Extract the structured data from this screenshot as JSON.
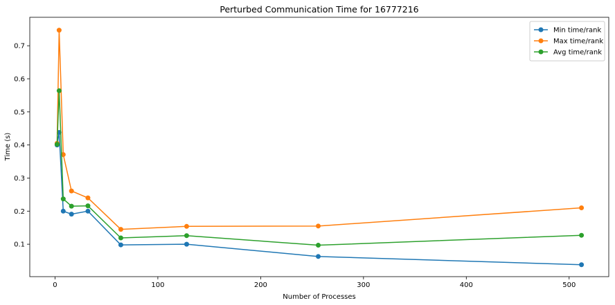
{
  "chart_data": {
    "type": "line",
    "title": "Perturbed Communication Time for 16777216",
    "xlabel": "Number of Processes",
    "ylabel": "Time (s)",
    "xlim": [
      -24.55,
      538.55
    ],
    "ylim": [
      0.002,
      0.786
    ],
    "xticks": [
      0,
      100,
      200,
      300,
      400,
      500
    ],
    "yticks": [
      0.1,
      0.2,
      0.3,
      0.4,
      0.5,
      0.6,
      0.7
    ],
    "grid": false,
    "legend_position": "top-right",
    "x": [
      2,
      4,
      8,
      16,
      32,
      64,
      128,
      256,
      512
    ],
    "series": [
      {
        "name": "Min time/rank",
        "color": "#1f77b4",
        "values": [
          0.4,
          0.438,
          0.2,
          0.191,
          0.2,
          0.098,
          0.1,
          0.063,
          0.038
        ]
      },
      {
        "name": "Max time/rank",
        "color": "#ff7f0e",
        "values": [
          0.405,
          0.747,
          0.371,
          0.261,
          0.24,
          0.145,
          0.154,
          0.155,
          0.21
        ]
      },
      {
        "name": "Avg time/rank",
        "color": "#2ca02c",
        "values": [
          0.402,
          0.564,
          0.237,
          0.215,
          0.216,
          0.119,
          0.126,
          0.097,
          0.127
        ]
      }
    ]
  }
}
